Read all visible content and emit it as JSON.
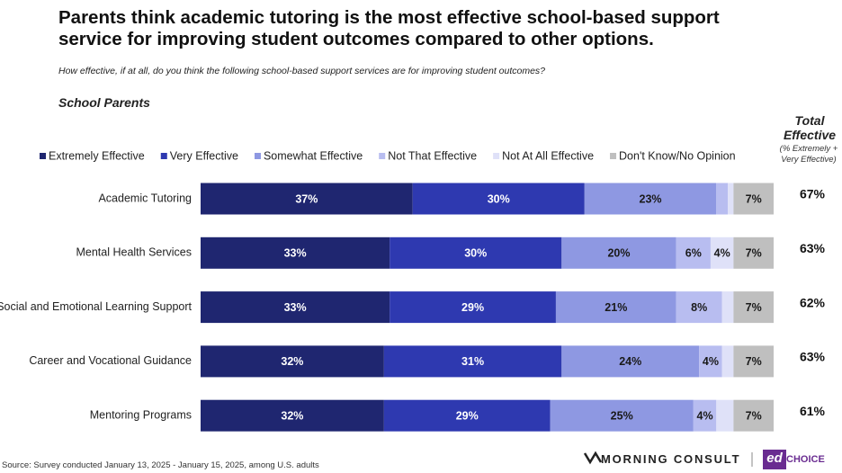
{
  "chart_data": {
    "type": "stacked-bar-horizontal",
    "title": "Parents think academic tutoring is the most effective school-based support service for improving student outcomes compared to other options.",
    "subtitle": "How effective, if at all, do you think the following school-based support services are for improving student outcomes?",
    "group_label": "School Parents",
    "categories": [
      "Academic Tutoring",
      "Mental Health Services",
      "Social and Emotional Learning Support",
      "Career and Vocational Guidance",
      "Mentoring Programs"
    ],
    "xlim": [
      0,
      100
    ],
    "series": [
      {
        "name": "Extremely Effective",
        "color": "#1f2670",
        "text_color": "#ffffff",
        "values": [
          37,
          33,
          33,
          32,
          32
        ],
        "value_labels": [
          "37%",
          "33%",
          "33%",
          "32%",
          "32%"
        ]
      },
      {
        "name": "Very Effective",
        "color": "#2e39b0",
        "text_color": "#ffffff",
        "values": [
          30,
          30,
          29,
          31,
          29
        ],
        "value_labels": [
          "30%",
          "30%",
          "29%",
          "31%",
          "29%"
        ]
      },
      {
        "name": "Somewhat Effective",
        "color": "#8e98e2",
        "text_color": "#1a1a1a",
        "values": [
          23,
          20,
          21,
          24,
          25
        ],
        "value_labels": [
          "23%",
          "20%",
          "21%",
          "24%",
          "25%"
        ]
      },
      {
        "name": "Not That Effective",
        "color": "#b8bdf0",
        "text_color": "#1a1a1a",
        "values": [
          2,
          6,
          8,
          4,
          4
        ],
        "value_labels": [
          null,
          "6%",
          "8%",
          "4%",
          "4%"
        ]
      },
      {
        "name": "Not At All Effective",
        "color": "#dfe1f8",
        "text_color": "#1a1a1a",
        "values": [
          1,
          4,
          2,
          2,
          3
        ],
        "value_labels": [
          null,
          "4%",
          null,
          null,
          null
        ]
      },
      {
        "name": "Don't Know/No Opinion",
        "color": "#bfbfbf",
        "text_color": "#1a1a1a",
        "values": [
          7,
          7,
          7,
          7,
          7
        ],
        "value_labels": [
          "7%",
          "7%",
          "7%",
          "7%",
          "7%"
        ]
      }
    ],
    "totals": {
      "title": "Total Effective",
      "subtitle": "(% Extremely + Very Effective)",
      "values": [
        67,
        63,
        62,
        63,
        61
      ],
      "value_labels": [
        "67%",
        "63%",
        "62%",
        "63%",
        "61%"
      ]
    },
    "source": "Source: Survey conducted January 13, 2025 - January 15, 2025, among U.S. adults",
    "branding": {
      "morning_consult": "MORNING CONSULT",
      "ed": "ed",
      "choice": "CHOICE"
    }
  }
}
